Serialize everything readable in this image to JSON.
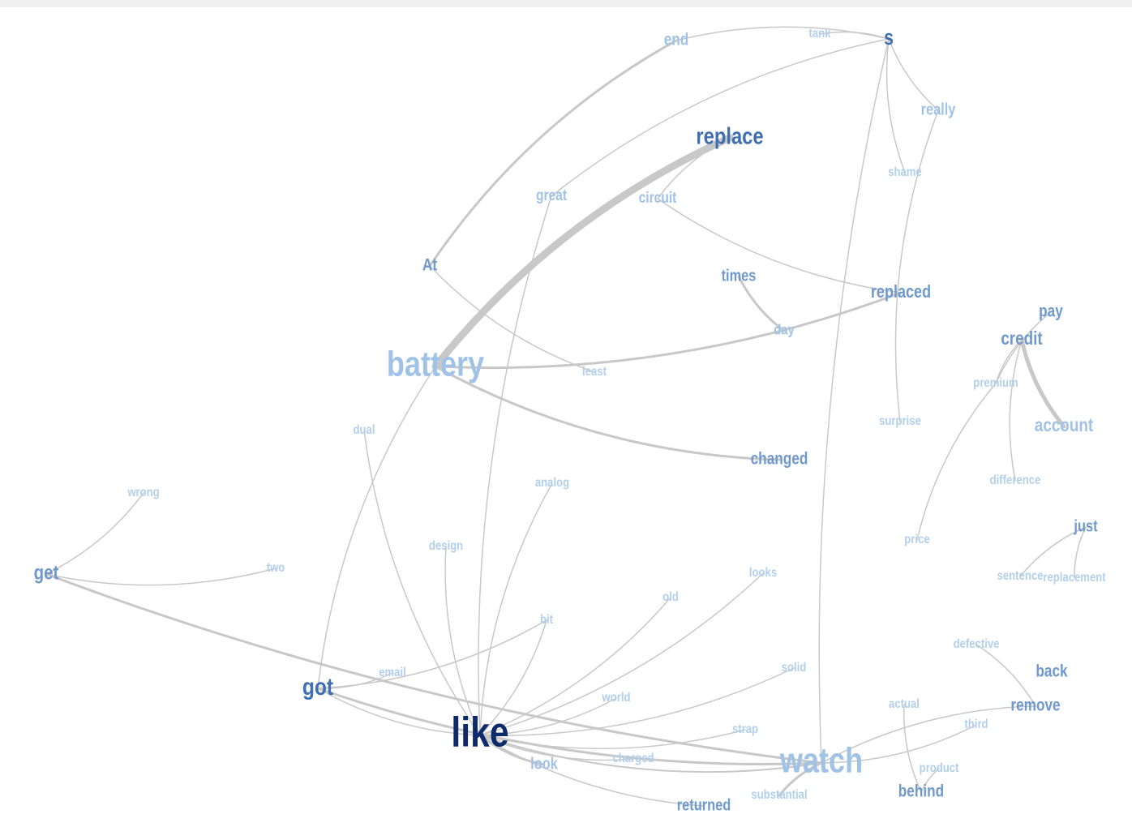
{
  "colors": {
    "edge": "#c8c8c8",
    "darkest": "#0d2a6a",
    "dark": "#3f6fb0",
    "medium": "#6f99cc",
    "light": "#a0c2e6",
    "lightest": "#b2cfec"
  },
  "nodes": [
    {
      "id": "s",
      "label": "s",
      "tone": "dark"
    },
    {
      "id": "end",
      "label": "end",
      "tone": "light"
    },
    {
      "id": "tank",
      "label": "tank",
      "tone": "lightest"
    },
    {
      "id": "really",
      "label": "really",
      "tone": "light"
    },
    {
      "id": "replace",
      "label": "replace",
      "tone": "dark"
    },
    {
      "id": "shame",
      "label": "shame",
      "tone": "lightest"
    },
    {
      "id": "great",
      "label": "great",
      "tone": "light"
    },
    {
      "id": "circuit",
      "label": "circuit",
      "tone": "light"
    },
    {
      "id": "At",
      "label": "At",
      "tone": "medium"
    },
    {
      "id": "times",
      "label": "times",
      "tone": "medium"
    },
    {
      "id": "replaced",
      "label": "replaced",
      "tone": "medium"
    },
    {
      "id": "pay",
      "label": "pay",
      "tone": "medium"
    },
    {
      "id": "day",
      "label": "day",
      "tone": "light"
    },
    {
      "id": "credit",
      "label": "credit",
      "tone": "medium"
    },
    {
      "id": "battery",
      "label": "battery",
      "tone": "light"
    },
    {
      "id": "least",
      "label": "least",
      "tone": "lightest"
    },
    {
      "id": "premium",
      "label": "premium",
      "tone": "lightest"
    },
    {
      "id": "surprise",
      "label": "surprise",
      "tone": "lightest"
    },
    {
      "id": "account",
      "label": "account",
      "tone": "light"
    },
    {
      "id": "dual",
      "label": "dual",
      "tone": "lightest"
    },
    {
      "id": "changed",
      "label": "changed",
      "tone": "medium"
    },
    {
      "id": "difference",
      "label": "difference",
      "tone": "lightest"
    },
    {
      "id": "analog",
      "label": "analog",
      "tone": "lightest"
    },
    {
      "id": "wrong",
      "label": "wrong",
      "tone": "lightest"
    },
    {
      "id": "just",
      "label": "just",
      "tone": "medium"
    },
    {
      "id": "price",
      "label": "price",
      "tone": "lightest"
    },
    {
      "id": "design",
      "label": "design",
      "tone": "lightest"
    },
    {
      "id": "two",
      "label": "two",
      "tone": "lightest"
    },
    {
      "id": "get",
      "label": "get",
      "tone": "medium"
    },
    {
      "id": "looks",
      "label": "looks",
      "tone": "lightest"
    },
    {
      "id": "sentence",
      "label": "sentence",
      "tone": "lightest"
    },
    {
      "id": "replacement",
      "label": "replacement",
      "tone": "lightest"
    },
    {
      "id": "old",
      "label": "old",
      "tone": "lightest"
    },
    {
      "id": "bit",
      "label": "bit",
      "tone": "lightest"
    },
    {
      "id": "defective",
      "label": "defective",
      "tone": "lightest"
    },
    {
      "id": "back",
      "label": "back",
      "tone": "medium"
    },
    {
      "id": "solid",
      "label": "solid",
      "tone": "lightest"
    },
    {
      "id": "email",
      "label": "email",
      "tone": "lightest"
    },
    {
      "id": "got",
      "label": "got",
      "tone": "dark"
    },
    {
      "id": "remove",
      "label": "remove",
      "tone": "medium"
    },
    {
      "id": "world",
      "label": "world",
      "tone": "lightest"
    },
    {
      "id": "actual",
      "label": "actual",
      "tone": "lightest"
    },
    {
      "id": "third",
      "label": "third",
      "tone": "lightest"
    },
    {
      "id": "like",
      "label": "like",
      "tone": "darkest"
    },
    {
      "id": "strap",
      "label": "strap",
      "tone": "lightest"
    },
    {
      "id": "watch",
      "label": "watch",
      "tone": "light"
    },
    {
      "id": "charged",
      "label": "charged",
      "tone": "lightest"
    },
    {
      "id": "look",
      "label": "look",
      "tone": "light"
    },
    {
      "id": "product",
      "label": "product",
      "tone": "lightest"
    },
    {
      "id": "behind",
      "label": "behind",
      "tone": "medium"
    },
    {
      "id": "substantial",
      "label": "substantial",
      "tone": "lightest"
    },
    {
      "id": "returned",
      "label": "returned",
      "tone": "medium"
    }
  ],
  "edges": [
    {
      "from": "replace",
      "to": "battery",
      "weight": 9
    },
    {
      "from": "credit",
      "to": "account",
      "weight": 5
    },
    {
      "from": "like",
      "to": "look",
      "weight": 3
    },
    {
      "from": "battery",
      "to": "replaced",
      "weight": 3
    },
    {
      "from": "battery",
      "to": "changed",
      "weight": 3
    },
    {
      "from": "get",
      "to": "watch",
      "weight": 3
    },
    {
      "from": "got",
      "to": "watch",
      "weight": 3
    },
    {
      "from": "end",
      "to": "At",
      "weight": 3
    },
    {
      "from": "times",
      "to": "day",
      "weight": 3
    },
    {
      "from": "watch",
      "to": "substantial",
      "weight": 3
    },
    {
      "from": "like",
      "to": "watch",
      "weight": 2
    },
    {
      "from": "s",
      "to": "end",
      "weight": 1.5
    },
    {
      "from": "s",
      "to": "tank",
      "weight": 1.5
    },
    {
      "from": "s",
      "to": "really",
      "weight": 1.5
    },
    {
      "from": "s",
      "to": "shame",
      "weight": 1.5
    },
    {
      "from": "s",
      "to": "great",
      "weight": 1.5
    },
    {
      "from": "s",
      "to": "watch",
      "weight": 1.5
    },
    {
      "from": "really",
      "to": "surprise",
      "weight": 1.5
    },
    {
      "from": "replace",
      "to": "circuit",
      "weight": 1.5
    },
    {
      "from": "circuit",
      "to": "replaced",
      "weight": 1.5
    },
    {
      "from": "At",
      "to": "least",
      "weight": 1.5
    },
    {
      "from": "great",
      "to": "like",
      "weight": 1.5
    },
    {
      "from": "battery",
      "to": "got",
      "weight": 1.5
    },
    {
      "from": "pay",
      "to": "premium",
      "weight": 1.5
    },
    {
      "from": "credit",
      "to": "premium",
      "weight": 1.5
    },
    {
      "from": "credit",
      "to": "difference",
      "weight": 1.5
    },
    {
      "from": "premium",
      "to": "price",
      "weight": 1.5
    },
    {
      "from": "just",
      "to": "sentence",
      "weight": 1.5
    },
    {
      "from": "just",
      "to": "replacement",
      "weight": 1.5
    },
    {
      "from": "get",
      "to": "wrong",
      "weight": 1.5
    },
    {
      "from": "get",
      "to": "two",
      "weight": 1.5
    },
    {
      "from": "dual",
      "to": "like",
      "weight": 1.5
    },
    {
      "from": "analog",
      "to": "like",
      "weight": 1.5
    },
    {
      "from": "design",
      "to": "like",
      "weight": 1.5
    },
    {
      "from": "like",
      "to": "looks",
      "weight": 1.5
    },
    {
      "from": "like",
      "to": "old",
      "weight": 1.5
    },
    {
      "from": "like",
      "to": "bit",
      "weight": 1.5
    },
    {
      "from": "like",
      "to": "solid",
      "weight": 1.5
    },
    {
      "from": "like",
      "to": "world",
      "weight": 1.5
    },
    {
      "from": "like",
      "to": "strap",
      "weight": 1.5
    },
    {
      "from": "like",
      "to": "charged",
      "weight": 1.5
    },
    {
      "from": "like",
      "to": "returned",
      "weight": 1.5
    },
    {
      "from": "got",
      "to": "email",
      "weight": 1.5
    },
    {
      "from": "got",
      "to": "bit",
      "weight": 1.5
    },
    {
      "from": "got",
      "to": "like",
      "weight": 1.5
    },
    {
      "from": "remove",
      "to": "watch",
      "weight": 1.5
    },
    {
      "from": "remove",
      "to": "defective",
      "weight": 1.5
    },
    {
      "from": "watch",
      "to": "third",
      "weight": 1.5
    },
    {
      "from": "actual",
      "to": "behind",
      "weight": 1.5
    },
    {
      "from": "product",
      "to": "behind",
      "weight": 1.5
    }
  ]
}
